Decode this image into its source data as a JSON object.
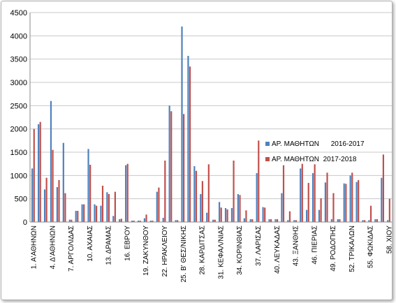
{
  "chart_data": {
    "type": "bar",
    "ylim": [
      0,
      4500
    ],
    "yticks": [
      0,
      500,
      1000,
      1500,
      2000,
      2500,
      3000,
      3500,
      4000,
      4500
    ],
    "grid": true,
    "legend_position": "right",
    "n_categories": 58,
    "tick_labels": [
      {
        "i": 1,
        "label": "1. Α'ΑΘΗΝΩΝ"
      },
      {
        "i": 4,
        "label": "4. Δ'ΑΘΗΝΩΝ"
      },
      {
        "i": 7,
        "label": "7. ΑΡΓΟΛΙΔΑΣ"
      },
      {
        "i": 10,
        "label": "10. ΑΧΑΙΑΣ"
      },
      {
        "i": 13,
        "label": "13. ΔΡΑΜΑΣ"
      },
      {
        "i": 16,
        "label": "16. ΕΒΡΟΥ"
      },
      {
        "i": 19,
        "label": "19. ΖΑΚΥΝΘΟΥ"
      },
      {
        "i": 22,
        "label": "22. ΗΡΑΚΛΕΙΟΥ"
      },
      {
        "i": 25,
        "label": "25. Β' ΘΕΣ/ΝΙΚΗΣ"
      },
      {
        "i": 28,
        "label": "28. ΚΑΡΔΙΤΣΑΣ"
      },
      {
        "i": 31,
        "label": "31. ΚΕΦΑΛ/ΝΙΑΣ"
      },
      {
        "i": 34,
        "label": "34. ΚΟΡΙΝΘΙΑΣ"
      },
      {
        "i": 37,
        "label": "37. ΛΑΡΙΣΑΣ"
      },
      {
        "i": 40,
        "label": "40. ΛΕΥΚΑΔΑΣ"
      },
      {
        "i": 43,
        "label": "43. ΞΑΝΘΗΣ"
      },
      {
        "i": 46,
        "label": "46. ΠΙΕΡΙΑΣ"
      },
      {
        "i": 49,
        "label": "49. ΡΟΔΟΠΗΣ"
      },
      {
        "i": 52,
        "label": "52. ΤΡΙΚΑΛΩΝ"
      },
      {
        "i": 55,
        "label": "55. ΦΩΚΙΔΑΣ"
      },
      {
        "i": 58,
        "label": "58. ΧΙΟΥ"
      }
    ],
    "series": [
      {
        "name": "ΑΡ. ΜΑΘΗΤΩΝ      2016-2017",
        "color": "#4f81bd",
        "values": [
          1150,
          2100,
          700,
          2600,
          750,
          1700,
          50,
          240,
          380,
          1570,
          380,
          350,
          640,
          130,
          60,
          1220,
          30,
          30,
          80,
          30,
          650,
          90,
          2500,
          40,
          4200,
          3570,
          1200,
          600,
          200,
          50,
          430,
          300,
          300,
          600,
          80,
          60,
          1050,
          320,
          60,
          60,
          620,
          40,
          40,
          1150,
          260,
          1050,
          260,
          850,
          60,
          60,
          830,
          1000,
          860,
          40,
          40,
          60,
          950,
          40
        ]
      },
      {
        "name": "ΑΡ. ΜΑΘΗΤΩΝ  2017-2018",
        "color": "#c0504d",
        "values": [
          2000,
          2150,
          950,
          1550,
          900,
          620,
          50,
          240,
          380,
          1230,
          350,
          780,
          600,
          650,
          70,
          1250,
          30,
          30,
          160,
          30,
          740,
          1320,
          2380,
          40,
          2320,
          3340,
          1100,
          880,
          1240,
          50,
          310,
          270,
          1320,
          580,
          250,
          60,
          1750,
          310,
          60,
          60,
          1220,
          230,
          40,
          1250,
          840,
          1240,
          510,
          1060,
          620,
          60,
          820,
          1060,
          900,
          40,
          350,
          60,
          1450,
          500
        ]
      }
    ]
  }
}
